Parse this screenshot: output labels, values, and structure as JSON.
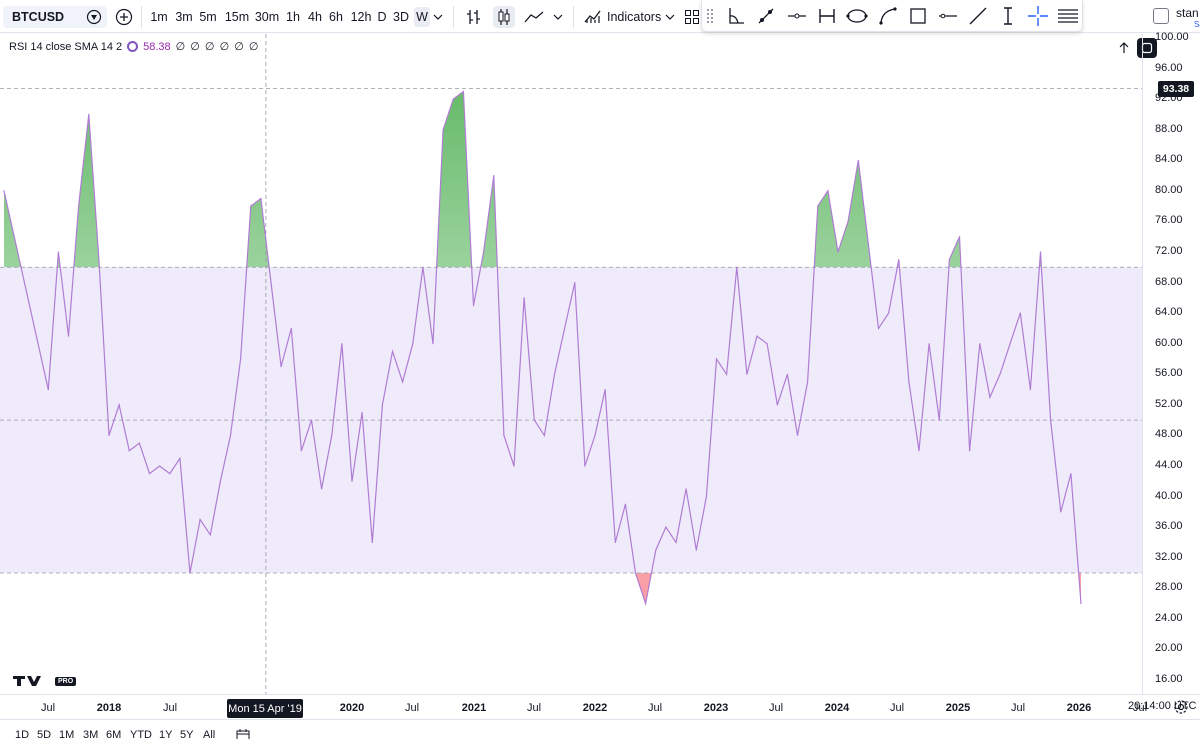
{
  "toolbar": {
    "symbol": "BTCUSD",
    "intervals": [
      "1m",
      "3m",
      "5m",
      "15m",
      "30m",
      "1h",
      "4h",
      "6h",
      "12h",
      "D",
      "3D",
      "W"
    ],
    "active_interval": "W",
    "indicators_label": "Indicators",
    "status_text": "stan",
    "status_sub": "Sa"
  },
  "legend": {
    "title": "RSI 14 close SMA 14 2",
    "value": "58.38",
    "placeholders": "∅ ∅ ∅ ∅ ∅ ∅"
  },
  "price_tag": "93.38",
  "crosshair_label": "Mon 15 Apr '19",
  "time_clock": "20:14:00 UTC",
  "logo_text": "TV",
  "logo_badge": "PRO",
  "ranges": [
    "1D",
    "5D",
    "1M",
    "3M",
    "6M",
    "YTD",
    "1Y",
    "5Y",
    "All"
  ],
  "colors": {
    "rsi_line": "#b07cd4",
    "band_fill": "#efebfa",
    "overbought_fill": "#4caf50",
    "oversold_fill": "#f23645",
    "crosshair": "#9598a1",
    "accent": "#2962ff"
  },
  "icons": {
    "symbol_icon": "crypto-coin-icon",
    "compare": "add-symbol-icon",
    "bar_replay": "bars-style-icon",
    "candles": "candles-icon",
    "line_style": "line-chart-icon",
    "indicators": "indicators-icon"
  },
  "chart_data": {
    "type": "line",
    "title": "RSI 14 close SMA 14 2",
    "series": [
      {
        "name": "RSI",
        "x": [
          "2017-06",
          "2017-07",
          "2017-08",
          "2017-09",
          "2017-10",
          "2017-11",
          "2017-12",
          "2018-01",
          "2018-02",
          "2018-03",
          "2018-04",
          "2018-05",
          "2018-06",
          "2018-07",
          "2018-08",
          "2018-09",
          "2018-10",
          "2018-11",
          "2018-12",
          "2019-01",
          "2019-02",
          "2019-03",
          "2019-04",
          "2019-05",
          "2019-06",
          "2019-07",
          "2019-08",
          "2019-09",
          "2019-10",
          "2019-11",
          "2019-12",
          "2020-01",
          "2020-02",
          "2020-03",
          "2020-04",
          "2020-05",
          "2020-06",
          "2020-07",
          "2020-08",
          "2020-09",
          "2020-10",
          "2020-11",
          "2020-12",
          "2021-01",
          "2021-02",
          "2021-03",
          "2021-04",
          "2021-05",
          "2021-06",
          "2021-07",
          "2021-08",
          "2021-09",
          "2021-10",
          "2021-11",
          "2021-12",
          "2022-01",
          "2022-02",
          "2022-03",
          "2022-04",
          "2022-05",
          "2022-06",
          "2022-07",
          "2022-08",
          "2022-09",
          "2022-10",
          "2022-11",
          "2022-12",
          "2023-01",
          "2023-02",
          "2023-03",
          "2023-04",
          "2023-05",
          "2023-06",
          "2023-07",
          "2023-08",
          "2023-09",
          "2023-10",
          "2023-11",
          "2023-12",
          "2024-01",
          "2024-02",
          "2024-03",
          "2024-04",
          "2024-05",
          "2024-06",
          "2024-07",
          "2024-08",
          "2024-09",
          "2024-10",
          "2024-11",
          "2024-12",
          "2025-01",
          "2025-02",
          "2025-03",
          "2025-04",
          "2025-05",
          "2025-06",
          "2025-07",
          "2025-08",
          "2025-09",
          "2025-10",
          "2025-11",
          "2025-12",
          "2026-01"
        ],
        "values": [
          80,
          54,
          72,
          61,
          78,
          90,
          71,
          48,
          52,
          46,
          47,
          43,
          44,
          43,
          45,
          30,
          37,
          35,
          42,
          48,
          58,
          78,
          79,
          68,
          57,
          62,
          46,
          50,
          41,
          48,
          60,
          42,
          51,
          34,
          52,
          59,
          55,
          60,
          70,
          60,
          88,
          92,
          93,
          65,
          72,
          82,
          48,
          44,
          66,
          50,
          48,
          56,
          62,
          68,
          44,
          48,
          54,
          34,
          39,
          30,
          26,
          33,
          36,
          34,
          41,
          33,
          40,
          58,
          56,
          70,
          56,
          61,
          60,
          52,
          56,
          48,
          55,
          78,
          80,
          72,
          76,
          84,
          73,
          62,
          64,
          71,
          55,
          46,
          60,
          50,
          71,
          74,
          46,
          60,
          53,
          56,
          60,
          64,
          54,
          72,
          50,
          38,
          43,
          26
        ]
      }
    ],
    "xlabel": "",
    "ylabel": "",
    "ylim": [
      14,
      102
    ],
    "hlines": [
      93.38,
      70,
      50,
      30
    ],
    "band": [
      30,
      70
    ],
    "x_ticks": [
      "Jul",
      "2018",
      "Jul",
      "2019",
      "2020",
      "Jul",
      "2021",
      "Jul",
      "2022",
      "Jul",
      "2023",
      "Jul",
      "2024",
      "Jul",
      "2025",
      "Jul",
      "2026",
      "Jul"
    ],
    "y_ticks": [
      100,
      96,
      92,
      88,
      84,
      80,
      76,
      72,
      68,
      64,
      60,
      56,
      52,
      48,
      44,
      40,
      36,
      32,
      28,
      24,
      20,
      16
    ],
    "grid": false,
    "legend_position": "top-left"
  }
}
